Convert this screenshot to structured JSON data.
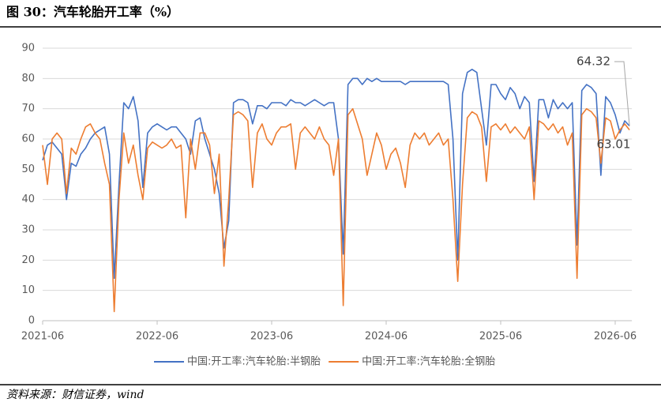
{
  "chart_data": {
    "type": "line",
    "title": "图 30：汽车轮胎开工率（%）",
    "source": "资料来源：财信证券，wind",
    "categories": [
      "2021-06",
      null,
      null,
      null,
      null,
      null,
      null,
      null,
      null,
      null,
      null,
      null,
      null,
      null,
      null,
      null,
      null,
      null,
      null,
      null,
      null,
      null,
      null,
      null,
      "2022-06",
      null,
      null,
      null,
      null,
      null,
      null,
      null,
      null,
      null,
      null,
      null,
      null,
      null,
      null,
      null,
      null,
      null,
      null,
      null,
      null,
      null,
      null,
      null,
      "2023-06",
      null,
      null,
      null,
      null,
      null,
      null,
      null,
      null,
      null,
      null,
      null,
      null,
      null,
      null,
      null,
      null,
      null,
      null,
      null,
      null,
      null,
      null,
      null,
      "2024-06",
      null,
      null,
      null,
      null,
      null,
      null,
      null,
      null,
      null,
      null,
      null,
      null,
      null,
      null,
      null,
      null,
      null,
      null,
      null,
      null,
      null,
      null,
      null,
      "2025-06",
      null,
      null,
      null,
      null,
      null,
      null,
      null,
      null,
      null,
      null,
      null,
      null,
      null,
      null,
      null,
      null,
      null,
      null,
      null,
      null,
      null,
      null,
      null,
      "2026-06",
      null,
      null,
      null
    ],
    "series": [
      {
        "name": "中国:开工率:汽车轮胎:半钢胎",
        "color": "#4472c4",
        "values": [
          53,
          58,
          59,
          57,
          55,
          40,
          52,
          51,
          55,
          57,
          60,
          62,
          63,
          64,
          55,
          14,
          45,
          72,
          70,
          74,
          66,
          44,
          62,
          64,
          65,
          64,
          63,
          64,
          64,
          62,
          60,
          55,
          66,
          67,
          60,
          55,
          50,
          42,
          24,
          33,
          72,
          73,
          73,
          72,
          65,
          71,
          71,
          70,
          72,
          72,
          72,
          71,
          73,
          72,
          72,
          71,
          72,
          73,
          72,
          71,
          72,
          72,
          60,
          22,
          78,
          80,
          80,
          78,
          80,
          79,
          80,
          79,
          79,
          79,
          79,
          79,
          78,
          79,
          79,
          79,
          79,
          79,
          79,
          79,
          79,
          78,
          60,
          20,
          75,
          82,
          83,
          82,
          70,
          58,
          78,
          78,
          75,
          73,
          77,
          75,
          70,
          74,
          72,
          46,
          73,
          73,
          67,
          73,
          70,
          72,
          70,
          72,
          25,
          76,
          78,
          77,
          75,
          48,
          74,
          72,
          68,
          62,
          66,
          64.32
        ]
      },
      {
        "name": "中国:开工率:汽车轮胎:全钢胎",
        "color": "#ed7d31",
        "values": [
          58,
          45,
          60,
          62,
          60,
          42,
          57,
          55,
          60,
          64,
          65,
          62,
          60,
          52,
          45,
          3,
          40,
          62,
          52,
          58,
          48,
          40,
          57,
          59,
          58,
          57,
          58,
          60,
          57,
          58,
          34,
          60,
          50,
          62,
          62,
          58,
          42,
          55,
          18,
          40,
          68,
          69,
          68,
          66,
          44,
          62,
          65,
          60,
          58,
          62,
          64,
          64,
          65,
          50,
          62,
          64,
          62,
          60,
          64,
          60,
          58,
          48,
          60,
          5,
          68,
          70,
          65,
          60,
          48,
          55,
          62,
          58,
          50,
          55,
          57,
          52,
          44,
          58,
          62,
          60,
          62,
          58,
          60,
          62,
          58,
          60,
          40,
          13,
          45,
          67,
          69,
          68,
          64,
          46,
          64,
          65,
          63,
          65,
          62,
          64,
          62,
          60,
          64,
          40,
          66,
          65,
          63,
          65,
          62,
          64,
          58,
          62,
          14,
          68,
          70,
          69,
          67,
          52,
          67,
          66,
          60,
          63,
          65,
          63.01
        ]
      }
    ],
    "ylim": [
      0,
      90
    ],
    "yticks": [
      0,
      10,
      20,
      30,
      40,
      50,
      60,
      70,
      80,
      90
    ],
    "grid": true,
    "legend": "bottom"
  }
}
